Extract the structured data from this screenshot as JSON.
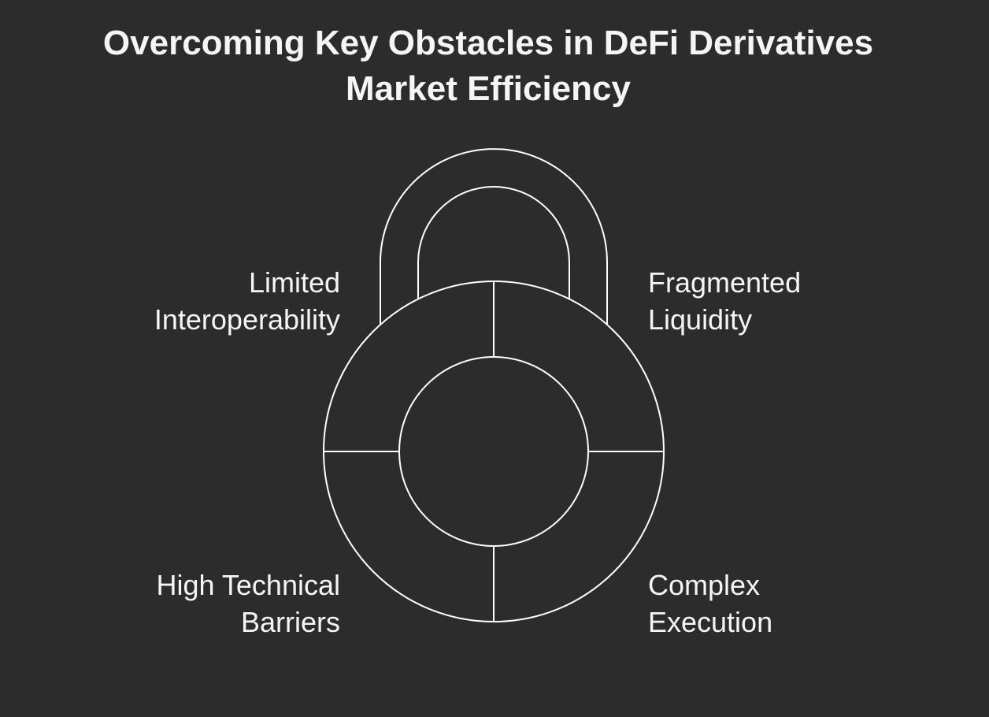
{
  "title": {
    "line1": "Overcoming Key Obstacles in DeFi Derivatives",
    "line2": "Market Efficiency"
  },
  "segments": {
    "top_left": {
      "line1": "Limited",
      "line2": "Interoperability"
    },
    "top_right": {
      "line1": "Fragmented",
      "line2": "Liquidity"
    },
    "bottom_left": {
      "line1": "High Technical",
      "line2": "Barriers"
    },
    "bottom_right": {
      "line1": "Complex",
      "line2": "Execution"
    }
  },
  "icon": "padlock-icon",
  "colors": {
    "background": "#2c2c2c",
    "stroke": "#ffffff",
    "text": "#f5f5f5"
  }
}
